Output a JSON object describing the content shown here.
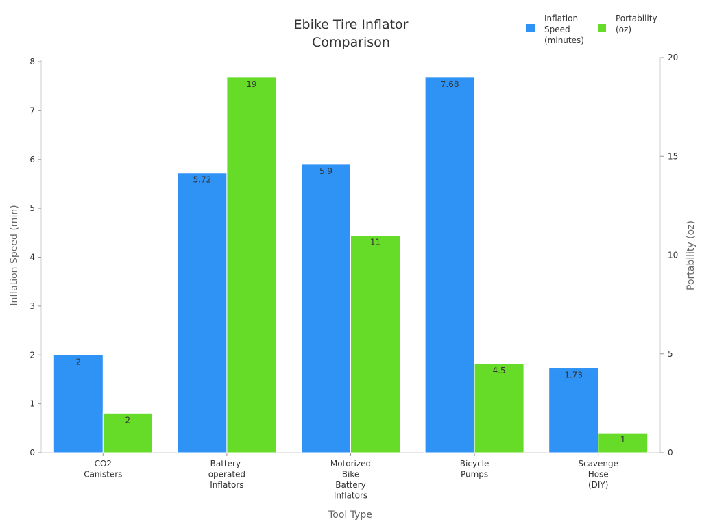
{
  "chart_data": {
    "type": "bar",
    "title": [
      "Ebike Tire Inflator",
      "Comparison"
    ],
    "xlabel": "Tool Type",
    "ylabel_left": "Inflation Speed (min)",
    "ylabel_right": "Portability (oz)",
    "categories": [
      [
        "CO2",
        "Canisters"
      ],
      [
        "Battery-",
        "operated",
        "Inflators"
      ],
      [
        "Motorized",
        "Bike",
        "Battery",
        "Inflators"
      ],
      [
        "Bicycle",
        "Pumps"
      ],
      [
        "Scavenge",
        "Hose",
        "(DIY)"
      ]
    ],
    "series": [
      {
        "name": [
          "Inflation",
          "Speed",
          "(minutes)"
        ],
        "axis": "left",
        "color": "#2f92f5",
        "values": [
          2,
          5.72,
          5.9,
          7.68,
          1.73
        ],
        "labels": [
          "2",
          "5.72",
          "5.9",
          "7.68",
          "1.73"
        ]
      },
      {
        "name": [
          "Portability",
          "(oz)"
        ],
        "axis": "right",
        "color": "#66db28",
        "values": [
          2,
          19,
          11,
          4.5,
          1
        ],
        "labels": [
          "2",
          "19",
          "11",
          "4.5",
          "1"
        ]
      }
    ],
    "ylim_left": [
      0,
      8
    ],
    "yticks_left": [
      0,
      1,
      2,
      3,
      4,
      5,
      6,
      7,
      8
    ],
    "ylim_right": [
      0,
      20
    ],
    "yticks_right": [
      0,
      5,
      10,
      15,
      20
    ],
    "legend_position": "top-right",
    "grid": false
  }
}
